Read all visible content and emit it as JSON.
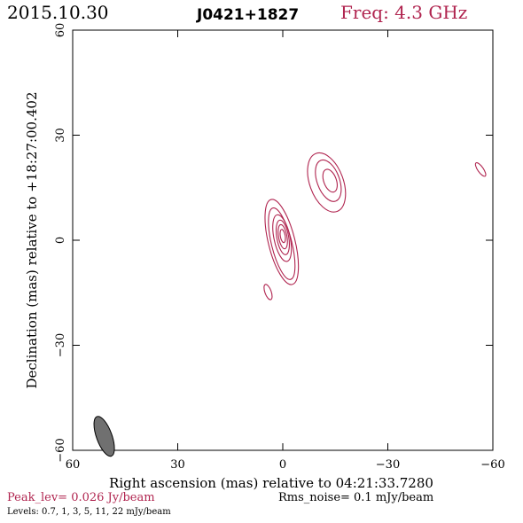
{
  "header": {
    "date": "2015.10.30",
    "source": "J0421+1827",
    "frequency": "Freq: 4.3 GHz"
  },
  "chart_data": {
    "type": "contour",
    "title": "J0421+1827",
    "xlabel": "Right ascension (mas) relative to 04:21:33.7280",
    "ylabel": "Declination (mas) relative to +18:27:00.402",
    "xlim": [
      60,
      -60
    ],
    "ylim": [
      -60,
      60
    ],
    "xticks": [
      60,
      30,
      0,
      -30,
      -60
    ],
    "yticks": [
      -60,
      -30,
      0,
      30,
      60
    ],
    "xtick_labels": [
      "60",
      "30",
      "0",
      "−30",
      "−60"
    ],
    "ytick_labels": [
      "−60",
      "−30",
      "0",
      "30",
      "60"
    ],
    "contour_color": "#b0244f",
    "contour_levels_mJy_per_beam": [
      0.7,
      1,
      3,
      5,
      11,
      22
    ],
    "components": [
      {
        "name": "core",
        "ra": 0,
        "dec": 0,
        "contours": [
          {
            "cx": 0.3,
            "cy": -0.5,
            "rx": 3.8,
            "ry": 12.5,
            "rot": -14
          },
          {
            "cx": 0.3,
            "cy": -1.0,
            "rx": 2.9,
            "ry": 10.5,
            "rot": -14
          },
          {
            "cx": 0.2,
            "cy": 0.6,
            "rx": 2.3,
            "ry": 6.8,
            "rot": -12
          },
          {
            "cx": 0.0,
            "cy": 0.8,
            "rx": 1.7,
            "ry": 5.0,
            "rot": -10
          },
          {
            "cx": 0.0,
            "cy": 1.0,
            "rx": 1.2,
            "ry": 3.5,
            "rot": -10
          },
          {
            "cx": 0.0,
            "cy": 1.2,
            "rx": 0.7,
            "ry": 1.9,
            "rot": -10
          }
        ]
      },
      {
        "name": "jet_knot",
        "ra": -12,
        "dec": 16,
        "contours": [
          {
            "cx": -12.5,
            "cy": 16.5,
            "rx": 4.8,
            "ry": 8.8,
            "rot": -20
          },
          {
            "cx": -13.0,
            "cy": 17.0,
            "rx": 3.2,
            "ry": 6.2,
            "rot": -20
          },
          {
            "cx": -13.5,
            "cy": 17.0,
            "rx": 1.8,
            "ry": 3.4,
            "rot": -20
          }
        ]
      },
      {
        "name": "south_blob",
        "ra": 4,
        "dec": -15,
        "contours": [
          {
            "cx": 4.2,
            "cy": -14.8,
            "rx": 0.9,
            "ry": 2.3,
            "rot": -20
          }
        ]
      },
      {
        "name": "east_blob",
        "ra": -57,
        "dec": 20,
        "contours": [
          {
            "cx": -56.5,
            "cy": 20.2,
            "rx": 0.8,
            "ry": 2.3,
            "rot": -35
          }
        ]
      }
    ],
    "beam": {
      "ra": 51,
      "dec": -56,
      "major": 6,
      "minor": 2.2,
      "pa_deg": -20,
      "fill": "#707070"
    }
  },
  "footer": {
    "peak": "Peak_lev=  0.026 Jy/beam",
    "rms": "Rms_noise=  0.1 mJy/beam",
    "levels": "Levels: 0.7,    1,    3,    5,   11,   22  mJy/beam"
  }
}
